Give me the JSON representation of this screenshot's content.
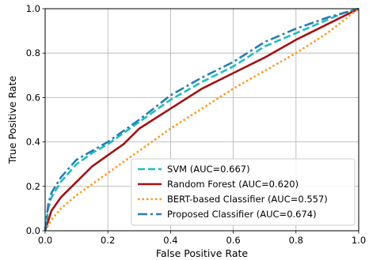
{
  "chart_data": {
    "type": "line",
    "title": "",
    "xlabel": "False Positive Rate",
    "ylabel": "True Positive Rate",
    "xlim": [
      0,
      1
    ],
    "ylim": [
      0,
      1
    ],
    "xticks": [
      "0.0",
      "0.2",
      "0.4",
      "0.6",
      "0.8",
      "1.0"
    ],
    "yticks": [
      "0.0",
      "0.2",
      "0.4",
      "0.6",
      "0.8",
      "1.0"
    ],
    "grid": true,
    "legend_position": "bottom-right",
    "series": [
      {
        "name": "SVM (AUC=0.667)",
        "color": "#1ABFBF",
        "style": "dashed",
        "x": [
          0,
          0.01,
          0.02,
          0.05,
          0.1,
          0.15,
          0.2,
          0.3,
          0.4,
          0.5,
          0.6,
          0.7,
          0.8,
          0.9,
          0.95,
          1.0
        ],
        "y": [
          0,
          0.1,
          0.15,
          0.22,
          0.3,
          0.35,
          0.39,
          0.49,
          0.59,
          0.67,
          0.74,
          0.83,
          0.89,
          0.95,
          0.98,
          1.0
        ]
      },
      {
        "name": "Random Forest (AUC=0.620)",
        "color": "#A31212",
        "style": "solid",
        "x": [
          0,
          0.02,
          0.05,
          0.1,
          0.15,
          0.2,
          0.25,
          0.3,
          0.4,
          0.5,
          0.6,
          0.7,
          0.8,
          0.9,
          1.0
        ],
        "y": [
          0,
          0.09,
          0.15,
          0.22,
          0.29,
          0.34,
          0.39,
          0.46,
          0.55,
          0.64,
          0.71,
          0.78,
          0.86,
          0.93,
          1.0
        ]
      },
      {
        "name": "BERT-based Classifier (AUC=0.557)",
        "color": "#FF9A1F",
        "style": "dotted",
        "x": [
          0,
          0.02,
          0.05,
          0.1,
          0.2,
          0.3,
          0.4,
          0.5,
          0.6,
          0.7,
          0.8,
          0.9,
          1.0
        ],
        "y": [
          0,
          0.05,
          0.1,
          0.16,
          0.26,
          0.36,
          0.46,
          0.55,
          0.64,
          0.72,
          0.8,
          0.89,
          1.0
        ]
      },
      {
        "name": "Proposed Classifier (AUC=0.674)",
        "color": "#2E7BB3",
        "style": "dashdot",
        "x": [
          0,
          0.01,
          0.02,
          0.05,
          0.1,
          0.15,
          0.2,
          0.3,
          0.4,
          0.5,
          0.6,
          0.7,
          0.8,
          0.9,
          0.95,
          1.0
        ],
        "y": [
          0,
          0.12,
          0.17,
          0.24,
          0.32,
          0.36,
          0.4,
          0.5,
          0.61,
          0.69,
          0.76,
          0.85,
          0.91,
          0.96,
          0.98,
          1.0
        ]
      }
    ]
  }
}
